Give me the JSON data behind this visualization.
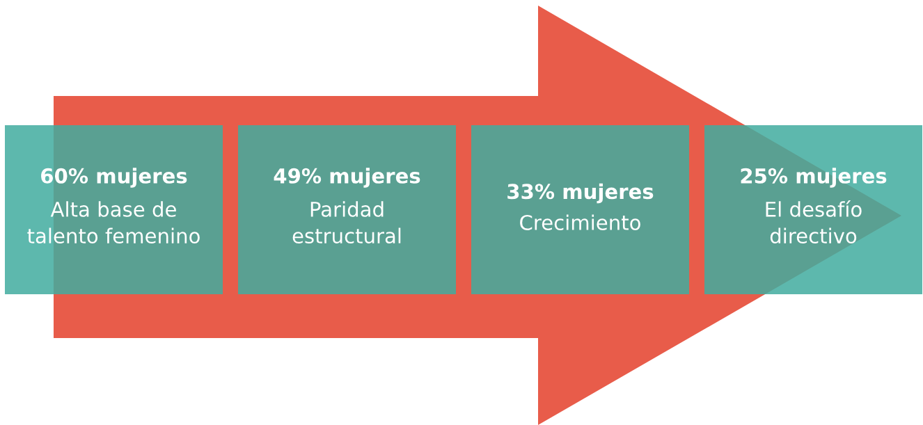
{
  "chart_data": {
    "type": "other",
    "categories": [
      "Alta base de\ntalento femenino",
      "Paridad\nestructural",
      "Crecimiento",
      "El desafío\ndirectivo"
    ],
    "values": [
      60,
      49,
      33,
      25
    ],
    "value_labels": [
      "60% mujeres",
      "49% mujeres",
      "33% mujeres",
      "25% mujeres"
    ],
    "colors": [
      "#41ab9f",
      "#41ab9f",
      "#41ab9f",
      "#41ab9f"
    ]
  }
}
